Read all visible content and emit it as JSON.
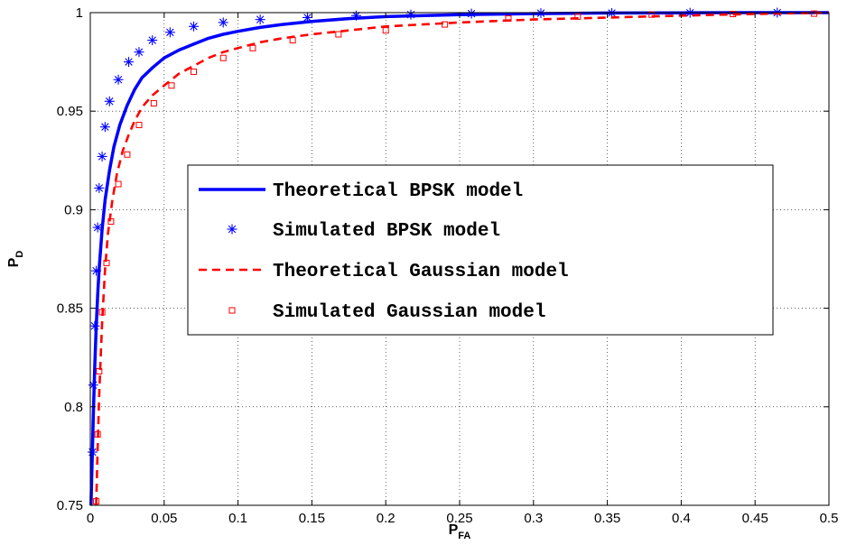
{
  "chart_data": {
    "type": "line",
    "title": "",
    "xlabel": {
      "main": "P",
      "sub": "FA"
    },
    "ylabel": {
      "main": "P",
      "sub": "D"
    },
    "xlim": [
      0,
      0.5
    ],
    "ylim": [
      0.75,
      1.0
    ],
    "xticks": [
      0,
      0.05,
      0.1,
      0.15,
      0.2,
      0.25,
      0.3,
      0.35,
      0.4,
      0.45,
      0.5
    ],
    "xtick_labels": [
      "0",
      "0.05",
      "0.1",
      "0.15",
      "0.2",
      "0.25",
      "0.3",
      "0.35",
      "0.4",
      "0.45",
      "0.5"
    ],
    "yticks": [
      0.75,
      0.8,
      0.85,
      0.9,
      0.95,
      1.0
    ],
    "ytick_labels": [
      "0.75",
      "0.8",
      "0.85",
      "0.9",
      "0.95",
      "1"
    ],
    "grid": true,
    "legend_position": "center",
    "series": [
      {
        "name": "Theoretical BPSK model",
        "style": "solid",
        "marker": "none",
        "color": "#0000ff",
        "x": [
          0.0005,
          0.001,
          0.0015,
          0.002,
          0.003,
          0.004,
          0.005,
          0.006,
          0.008,
          0.01,
          0.013,
          0.016,
          0.02,
          0.025,
          0.03,
          0.035,
          0.042,
          0.05,
          0.06,
          0.07,
          0.08,
          0.09,
          0.1,
          0.115,
          0.13,
          0.15,
          0.175,
          0.2,
          0.25,
          0.3,
          0.35,
          0.4,
          0.45,
          0.5
        ],
        "y": [
          0.75,
          0.765,
          0.78,
          0.795,
          0.82,
          0.84,
          0.857,
          0.87,
          0.89,
          0.905,
          0.92,
          0.932,
          0.943,
          0.953,
          0.961,
          0.967,
          0.972,
          0.977,
          0.981,
          0.984,
          0.987,
          0.989,
          0.9905,
          0.9925,
          0.994,
          0.9955,
          0.997,
          0.998,
          0.999,
          0.9995,
          0.9998,
          0.9999,
          1.0,
          1.0
        ]
      },
      {
        "name": "Simulated BPSK model",
        "style": "none",
        "marker": "star",
        "color": "#0000ff",
        "x": [
          0.0015,
          0.002,
          0.003,
          0.004,
          0.005,
          0.006,
          0.008,
          0.01,
          0.013,
          0.019,
          0.026,
          0.033,
          0.042,
          0.054,
          0.07,
          0.09,
          0.115,
          0.147,
          0.18,
          0.217,
          0.258,
          0.305,
          0.353,
          0.406,
          0.465
        ],
        "y": [
          0.777,
          0.811,
          0.841,
          0.869,
          0.891,
          0.911,
          0.927,
          0.942,
          0.955,
          0.966,
          0.975,
          0.98,
          0.986,
          0.99,
          0.993,
          0.995,
          0.9965,
          0.9975,
          0.9985,
          0.999,
          0.9995,
          0.9997,
          0.9998,
          0.9999,
          1.0
        ]
      },
      {
        "name": "Theoretical Gaussian model",
        "style": "dashed",
        "marker": "none",
        "color": "#ff0000",
        "x": [
          0.004,
          0.005,
          0.006,
          0.007,
          0.008,
          0.01,
          0.012,
          0.015,
          0.018,
          0.022,
          0.026,
          0.03,
          0.035,
          0.042,
          0.05,
          0.06,
          0.07,
          0.08,
          0.09,
          0.1,
          0.115,
          0.13,
          0.15,
          0.175,
          0.2,
          0.225,
          0.25,
          0.3,
          0.35,
          0.4,
          0.45,
          0.5
        ],
        "y": [
          0.75,
          0.78,
          0.805,
          0.825,
          0.843,
          0.87,
          0.888,
          0.905,
          0.918,
          0.93,
          0.938,
          0.945,
          0.952,
          0.958,
          0.963,
          0.969,
          0.973,
          0.977,
          0.98,
          0.982,
          0.985,
          0.987,
          0.989,
          0.991,
          0.993,
          0.994,
          0.995,
          0.9965,
          0.9975,
          0.9985,
          0.9993,
          1.0
        ]
      },
      {
        "name": "Simulated Gaussian model",
        "style": "none",
        "marker": "square",
        "color": "#ff0000",
        "x": [
          0.004,
          0.005,
          0.006,
          0.008,
          0.011,
          0.014,
          0.019,
          0.025,
          0.033,
          0.043,
          0.055,
          0.07,
          0.09,
          0.11,
          0.137,
          0.168,
          0.2,
          0.24,
          0.283,
          0.33,
          0.38,
          0.435,
          0.49
        ],
        "y": [
          0.752,
          0.786,
          0.818,
          0.848,
          0.873,
          0.894,
          0.913,
          0.928,
          0.943,
          0.954,
          0.963,
          0.97,
          0.977,
          0.982,
          0.986,
          0.989,
          0.991,
          0.994,
          0.997,
          0.998,
          0.999,
          0.9993,
          0.9995
        ]
      }
    ]
  }
}
